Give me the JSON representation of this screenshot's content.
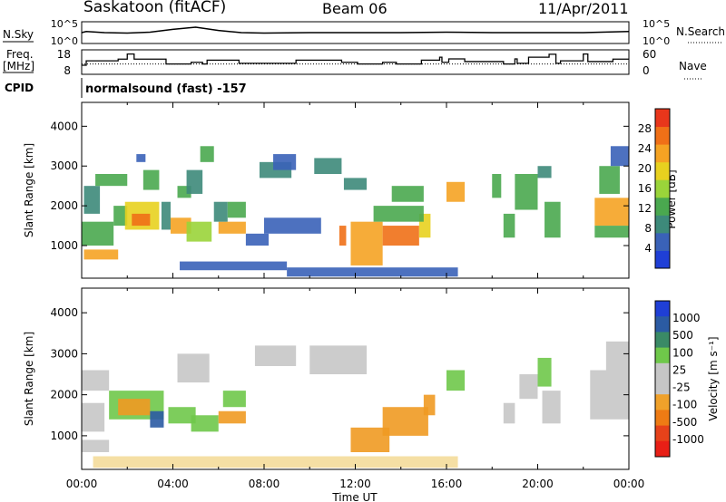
{
  "header": {
    "site": "Saskatoon (fitACF)",
    "beam": "Beam 06",
    "date": "11/Apr/2011"
  },
  "left_labels": {
    "nsky": "N.Sky",
    "freq_line1": "Freq.",
    "freq_line2": "[MHz]",
    "cpid": "CPID"
  },
  "right_labels": {
    "nsearch": "N.Search",
    "nave": "Nave"
  },
  "cpid_text": "normalsound (fast) -157",
  "colors": {
    "power_scale": [
      "#1f3fd6",
      "#3a62b8",
      "#3d8a7a",
      "#4aa84f",
      "#9ad43a",
      "#e8d11f",
      "#f5a323",
      "#f07017",
      "#e8361b"
    ],
    "velocity_scale": [
      "#1f3fd6",
      "#2b5ba3",
      "#3a8a66",
      "#6fc84a",
      "#c6c6c6",
      "#c6c6c6",
      "#f0a12a",
      "#ee7b14",
      "#e6421a",
      "#e81f16"
    ]
  },
  "chart_data": [
    {
      "type": "line",
      "name": "noise",
      "xlim": [
        0,
        24
      ],
      "y_ticks": [
        "10^5",
        "10^0"
      ],
      "y_ticks_right": [
        "10^5",
        "10^0"
      ],
      "series": [
        {
          "values": [
            [
              0,
              0.5
            ],
            [
              0.2,
              0.55
            ],
            [
              1,
              0.5
            ],
            [
              2,
              0.48
            ],
            [
              3,
              0.52
            ],
            [
              4,
              0.65
            ],
            [
              5,
              0.75
            ],
            [
              6,
              0.6
            ],
            [
              7,
              0.5
            ],
            [
              8,
              0.48
            ],
            [
              10,
              0.5
            ],
            [
              12,
              0.5
            ],
            [
              14,
              0.5
            ],
            [
              16,
              0.52
            ],
            [
              18,
              0.5
            ],
            [
              20,
              0.5
            ],
            [
              22,
              0.5
            ],
            [
              24,
              0.55
            ]
          ]
        }
      ]
    },
    {
      "type": "line",
      "name": "frequency",
      "xlim": [
        0,
        24
      ],
      "y_ticks": [
        "18",
        "8"
      ],
      "y_ticks_right": [
        "60",
        "0"
      ],
      "series": [
        {
          "values": [
            [
              0,
              11.7
            ],
            [
              0.2,
              11.7
            ],
            [
              0.2,
              13.5
            ],
            [
              1.6,
              13.5
            ],
            [
              1.6,
              14.2
            ],
            [
              2,
              14.2
            ],
            [
              2,
              16.3
            ],
            [
              2.3,
              16.3
            ],
            [
              2.3,
              14.2
            ],
            [
              3.7,
              14.2
            ],
            [
              3.7,
              12.2
            ],
            [
              4.8,
              12.2
            ],
            [
              4.8,
              12.9
            ],
            [
              5.3,
              12.9
            ],
            [
              5.3,
              12.2
            ],
            [
              5.5,
              12.2
            ],
            [
              5.5,
              13.8
            ],
            [
              6.9,
              13.8
            ],
            [
              6.9,
              12.5
            ],
            [
              9.4,
              12.5
            ],
            [
              9.4,
              13.8
            ],
            [
              11.4,
              13.8
            ],
            [
              11.4,
              12.9
            ],
            [
              12.1,
              12.9
            ],
            [
              12.1,
              12.2
            ],
            [
              13.2,
              12.2
            ],
            [
              13.2,
              12.9
            ],
            [
              13.8,
              12.9
            ],
            [
              13.8,
              12.2
            ],
            [
              14.9,
              12.2
            ],
            [
              14.9,
              13.8
            ],
            [
              15.7,
              13.8
            ],
            [
              15.7,
              15.0
            ],
            [
              15.8,
              15.0
            ],
            [
              15.8,
              12.9
            ],
            [
              16.1,
              12.9
            ],
            [
              16.1,
              14.3
            ],
            [
              16.8,
              14.3
            ],
            [
              16.8,
              13.2
            ],
            [
              18.5,
              13.2
            ],
            [
              18.5,
              12.2
            ],
            [
              19.0,
              12.2
            ],
            [
              19.0,
              14.3
            ],
            [
              19.1,
              14.3
            ],
            [
              19.1,
              12.5
            ],
            [
              19.6,
              12.5
            ],
            [
              19.6,
              15.0
            ],
            [
              20.5,
              15.0
            ],
            [
              20.5,
              16.2
            ],
            [
              20.8,
              16.2
            ],
            [
              20.8,
              12.5
            ],
            [
              21.0,
              12.5
            ],
            [
              21.0,
              13.5
            ],
            [
              22.0,
              13.5
            ],
            [
              22.0,
              16.3
            ],
            [
              22.2,
              16.3
            ],
            [
              22.2,
              13.2
            ],
            [
              23.3,
              13.2
            ],
            [
              23.3,
              14.2
            ],
            [
              24,
              14.2
            ]
          ]
        },
        {
          "values": [
            [
              0,
              12.2
            ],
            [
              24,
              12.2
            ]
          ]
        }
      ]
    },
    {
      "type": "heatmap",
      "name": "power",
      "xlabel": "",
      "ylabel": "Slant Range [km]",
      "xlim": [
        0,
        24
      ],
      "ylim": [
        180,
        4600
      ],
      "y_ticks": [
        "1000",
        "2000",
        "3000",
        "4000"
      ],
      "colorbar": {
        "label": "Power [dB]",
        "ticks": [
          "4",
          "8",
          "12",
          "16",
          "20",
          "24",
          "28"
        ],
        "range": [
          0,
          32
        ]
      },
      "regions": [
        {
          "t0": 0.1,
          "t1": 1.6,
          "r0": 650,
          "r1": 900,
          "v": 23
        },
        {
          "t0": 0.0,
          "t1": 1.4,
          "r0": 1000,
          "r1": 1600,
          "v": 14
        },
        {
          "t0": 0.1,
          "t1": 0.8,
          "r0": 1800,
          "r1": 2500,
          "v": 10
        },
        {
          "t0": 0.6,
          "t1": 2.0,
          "r0": 2500,
          "r1": 2800,
          "v": 12
        },
        {
          "t0": 1.4,
          "t1": 2.0,
          "r0": 1500,
          "r1": 2000,
          "v": 14
        },
        {
          "t0": 1.9,
          "t1": 3.4,
          "r0": 1400,
          "r1": 2100,
          "v": 21
        },
        {
          "t0": 2.2,
          "t1": 3.0,
          "r0": 1500,
          "r1": 1800,
          "v": 27
        },
        {
          "t0": 3.5,
          "t1": 3.9,
          "r0": 1400,
          "r1": 2100,
          "v": 9
        },
        {
          "t0": 2.7,
          "t1": 3.4,
          "r0": 2400,
          "r1": 2900,
          "v": 11
        },
        {
          "t0": 2.4,
          "t1": 2.8,
          "r0": 3100,
          "r1": 3300,
          "v": 4
        },
        {
          "t0": 3.9,
          "t1": 4.8,
          "r0": 1300,
          "r1": 1700,
          "v": 22
        },
        {
          "t0": 4.6,
          "t1": 5.7,
          "r0": 1100,
          "r1": 1600,
          "v": 17
        },
        {
          "t0": 4.2,
          "t1": 4.8,
          "r0": 2200,
          "r1": 2500,
          "v": 11
        },
        {
          "t0": 5.2,
          "t1": 5.8,
          "r0": 3100,
          "r1": 3500,
          "v": 13
        },
        {
          "t0": 4.6,
          "t1": 5.3,
          "r0": 2300,
          "r1": 2900,
          "v": 10
        },
        {
          "t0": 6.0,
          "t1": 7.2,
          "r0": 1300,
          "r1": 1600,
          "v": 24
        },
        {
          "t0": 5.8,
          "t1": 6.4,
          "r0": 1600,
          "r1": 2100,
          "v": 10
        },
        {
          "t0": 6.4,
          "t1": 7.2,
          "r0": 1700,
          "r1": 2100,
          "v": 13
        },
        {
          "t0": 7.2,
          "t1": 8.2,
          "r0": 1000,
          "r1": 1300,
          "v": 6
        },
        {
          "t0": 7.8,
          "t1": 9.2,
          "r0": 2700,
          "r1": 3100,
          "v": 10
        },
        {
          "t0": 8.4,
          "t1": 9.4,
          "r0": 2900,
          "r1": 3300,
          "v": 7
        },
        {
          "t0": 4.3,
          "t1": 9.0,
          "r0": 380,
          "r1": 600,
          "v": 5
        },
        {
          "t0": 8.0,
          "t1": 10.5,
          "r0": 1300,
          "r1": 1700,
          "v": 6
        },
        {
          "t0": 10.2,
          "t1": 11.4,
          "r0": 2800,
          "r1": 3200,
          "v": 9
        },
        {
          "t0": 11.5,
          "t1": 12.5,
          "r0": 2400,
          "r1": 2700,
          "v": 10
        },
        {
          "t0": 11.3,
          "t1": 11.6,
          "r0": 1000,
          "r1": 1500,
          "v": 27
        },
        {
          "t0": 11.8,
          "t1": 13.2,
          "r0": 500,
          "r1": 1600,
          "v": 23
        },
        {
          "t0": 13.2,
          "t1": 14.8,
          "r0": 1000,
          "r1": 1500,
          "v": 26
        },
        {
          "t0": 14.8,
          "t1": 15.3,
          "r0": 1200,
          "r1": 1800,
          "v": 21
        },
        {
          "t0": 12.8,
          "t1": 15.0,
          "r0": 1600,
          "r1": 2000,
          "v": 11
        },
        {
          "t0": 13.6,
          "t1": 15.0,
          "r0": 2100,
          "r1": 2500,
          "v": 11
        },
        {
          "t0": 9.0,
          "t1": 16.5,
          "r0": 220,
          "r1": 450,
          "v": 5
        },
        {
          "t0": 16.0,
          "t1": 16.8,
          "r0": 2100,
          "r1": 2600,
          "v": 22
        },
        {
          "t0": 18.0,
          "t1": 18.4,
          "r0": 2200,
          "r1": 2800,
          "v": 12
        },
        {
          "t0": 18.5,
          "t1": 19.0,
          "r0": 1200,
          "r1": 1800,
          "v": 13
        },
        {
          "t0": 19.0,
          "t1": 20.0,
          "r0": 1900,
          "r1": 2800,
          "v": 13
        },
        {
          "t0": 20.3,
          "t1": 21.0,
          "r0": 1200,
          "r1": 2100,
          "v": 14
        },
        {
          "t0": 20.0,
          "t1": 20.6,
          "r0": 2700,
          "r1": 3000,
          "v": 8
        },
        {
          "t0": 22.5,
          "t1": 24.0,
          "r0": 1500,
          "r1": 2200,
          "v": 22
        },
        {
          "t0": 22.7,
          "t1": 23.6,
          "r0": 2300,
          "r1": 3000,
          "v": 12
        },
        {
          "t0": 23.2,
          "t1": 24.0,
          "r0": 3000,
          "r1": 3500,
          "v": 7
        },
        {
          "t0": 22.5,
          "t1": 24.0,
          "r0": 1200,
          "r1": 1500,
          "v": 11
        }
      ]
    },
    {
      "type": "heatmap",
      "name": "velocity",
      "xlabel": "Time UT",
      "ylabel": "Slant Range [km]",
      "xlim": [
        0,
        24
      ],
      "ylim": [
        180,
        4600
      ],
      "x_ticks": [
        "00:00",
        "04:00",
        "08:00",
        "12:00",
        "16:00",
        "20:00",
        "00:00"
      ],
      "y_ticks": [
        "1000",
        "2000",
        "3000",
        "4000"
      ],
      "colorbar": {
        "label": "Velocity [m s⁻¹]",
        "ticks": [
          "1000",
          "500",
          "100",
          "25",
          "-25",
          "-100",
          "-500",
          "-1000"
        ]
      },
      "regions": [
        {
          "t0": 0.0,
          "t1": 1.2,
          "r0": 600,
          "r1": 900,
          "v": "gray"
        },
        {
          "t0": 0.0,
          "t1": 1.0,
          "r0": 1100,
          "r1": 1800,
          "v": "gray"
        },
        {
          "t0": 0.0,
          "t1": 1.2,
          "r0": 2100,
          "r1": 2600,
          "v": "gray"
        },
        {
          "t0": 1.2,
          "t1": 3.6,
          "r0": 1400,
          "r1": 2100,
          "v": "green"
        },
        {
          "t0": 1.6,
          "t1": 3.0,
          "r0": 1500,
          "r1": 1900,
          "v": "orange"
        },
        {
          "t0": 3.0,
          "t1": 3.6,
          "r0": 1200,
          "r1": 1600,
          "v": "blue"
        },
        {
          "t0": 3.8,
          "t1": 5.0,
          "r0": 1300,
          "r1": 1700,
          "v": "green"
        },
        {
          "t0": 4.8,
          "t1": 6.0,
          "r0": 1100,
          "r1": 1500,
          "v": "green"
        },
        {
          "t0": 6.0,
          "t1": 7.2,
          "r0": 1300,
          "r1": 1600,
          "v": "orange"
        },
        {
          "t0": 6.2,
          "t1": 7.2,
          "r0": 1700,
          "r1": 2100,
          "v": "green"
        },
        {
          "t0": 4.2,
          "t1": 5.6,
          "r0": 2300,
          "r1": 3000,
          "v": "gray"
        },
        {
          "t0": 7.6,
          "t1": 9.4,
          "r0": 2700,
          "r1": 3200,
          "v": "gray"
        },
        {
          "t0": 10.0,
          "t1": 12.5,
          "r0": 2500,
          "r1": 3200,
          "v": "gray"
        },
        {
          "t0": 11.8,
          "t1": 13.5,
          "r0": 600,
          "r1": 1200,
          "v": "orange"
        },
        {
          "t0": 13.2,
          "t1": 15.2,
          "r0": 1000,
          "r1": 1700,
          "v": "orange"
        },
        {
          "t0": 15.0,
          "t1": 15.5,
          "r0": 1500,
          "r1": 2000,
          "v": "orange"
        },
        {
          "t0": 0.5,
          "t1": 16.5,
          "r0": 220,
          "r1": 500,
          "v": "yellow"
        },
        {
          "t0": 16.0,
          "t1": 16.8,
          "r0": 2100,
          "r1": 2600,
          "v": "green"
        },
        {
          "t0": 18.5,
          "t1": 19.0,
          "r0": 1300,
          "r1": 1800,
          "v": "gray"
        },
        {
          "t0": 19.2,
          "t1": 20.0,
          "r0": 1900,
          "r1": 2500,
          "v": "gray"
        },
        {
          "t0": 20.2,
          "t1": 21.0,
          "r0": 1300,
          "r1": 2100,
          "v": "gray"
        },
        {
          "t0": 20.0,
          "t1": 20.6,
          "r0": 2200,
          "r1": 2900,
          "v": "green"
        },
        {
          "t0": 22.3,
          "t1": 24.0,
          "r0": 1400,
          "r1": 2600,
          "v": "gray"
        },
        {
          "t0": 23.0,
          "t1": 24.0,
          "r0": 2600,
          "r1": 3300,
          "v": "gray"
        }
      ]
    }
  ]
}
